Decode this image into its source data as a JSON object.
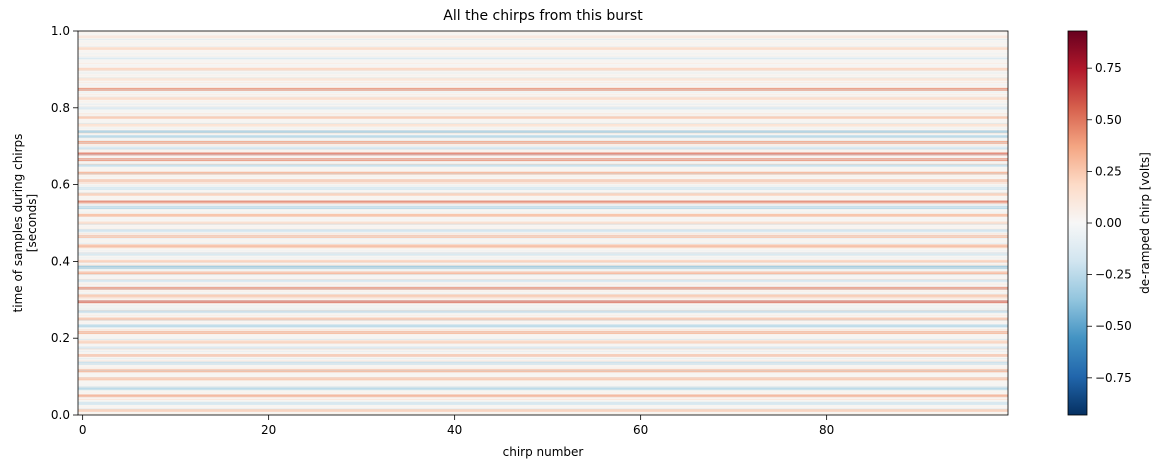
{
  "chart_data": {
    "type": "heatmap",
    "title": "All the chirps from this burst",
    "xlabel": "chirp number",
    "ylabel_lines": [
      "time of samples during chirps",
      "[seconds]"
    ],
    "xlim": [
      -0.5,
      99.5
    ],
    "ylim": [
      0.0,
      1.0
    ],
    "xticks": [
      0,
      20,
      40,
      60,
      80
    ],
    "yticks": [
      0.0,
      0.2,
      0.4,
      0.6,
      0.8,
      1.0
    ],
    "ytick_labels": [
      "0.0",
      "0.2",
      "0.4",
      "0.6",
      "0.8",
      "1.0"
    ],
    "n_chirps": 100,
    "colormap": "RdBu_r",
    "colormap_stops": [
      "#053061",
      "#2166ac",
      "#4393c3",
      "#92c5de",
      "#d1e5f0",
      "#f7f7f7",
      "#fddbc7",
      "#f4a582",
      "#d6604d",
      "#b2182b",
      "#67001f"
    ],
    "value_range": [
      -0.93,
      0.93
    ],
    "profile_features": [
      {
        "t": 0.985,
        "v": 0.1
      },
      {
        "t": 0.955,
        "v": 0.18
      },
      {
        "t": 0.93,
        "v": -0.08
      },
      {
        "t": 0.9,
        "v": 0.22
      },
      {
        "t": 0.875,
        "v": 0.15
      },
      {
        "t": 0.848,
        "v": 0.45
      },
      {
        "t": 0.825,
        "v": 0.2
      },
      {
        "t": 0.8,
        "v": -0.15
      },
      {
        "t": 0.775,
        "v": 0.28
      },
      {
        "t": 0.755,
        "v": 0.18
      },
      {
        "t": 0.738,
        "v": -0.35
      },
      {
        "t": 0.725,
        "v": -0.3
      },
      {
        "t": 0.71,
        "v": 0.4
      },
      {
        "t": 0.695,
        "v": -0.22
      },
      {
        "t": 0.68,
        "v": 0.52
      },
      {
        "t": 0.665,
        "v": 0.45
      },
      {
        "t": 0.65,
        "v": -0.25
      },
      {
        "t": 0.63,
        "v": 0.35
      },
      {
        "t": 0.61,
        "v": 0.3
      },
      {
        "t": 0.59,
        "v": -0.2
      },
      {
        "t": 0.575,
        "v": 0.25
      },
      {
        "t": 0.555,
        "v": 0.5
      },
      {
        "t": 0.54,
        "v": -0.3
      },
      {
        "t": 0.52,
        "v": 0.32
      },
      {
        "t": 0.5,
        "v": 0.2
      },
      {
        "t": 0.48,
        "v": -0.22
      },
      {
        "t": 0.465,
        "v": 0.3
      },
      {
        "t": 0.44,
        "v": 0.35
      },
      {
        "t": 0.42,
        "v": -0.18
      },
      {
        "t": 0.4,
        "v": 0.25
      },
      {
        "t": 0.385,
        "v": -0.4
      },
      {
        "t": 0.37,
        "v": 0.35
      },
      {
        "t": 0.35,
        "v": -0.2
      },
      {
        "t": 0.33,
        "v": 0.45
      },
      {
        "t": 0.31,
        "v": 0.3
      },
      {
        "t": 0.295,
        "v": 0.55
      },
      {
        "t": 0.27,
        "v": -0.25
      },
      {
        "t": 0.25,
        "v": 0.3
      },
      {
        "t": 0.232,
        "v": -0.3
      },
      {
        "t": 0.215,
        "v": 0.35
      },
      {
        "t": 0.19,
        "v": 0.25
      },
      {
        "t": 0.175,
        "v": -0.18
      },
      {
        "t": 0.155,
        "v": 0.3
      },
      {
        "t": 0.135,
        "v": -0.25
      },
      {
        "t": 0.115,
        "v": 0.35
      },
      {
        "t": 0.095,
        "v": 0.28
      },
      {
        "t": 0.07,
        "v": -0.3
      },
      {
        "t": 0.05,
        "v": 0.38
      },
      {
        "t": 0.03,
        "v": -0.2
      },
      {
        "t": 0.012,
        "v": 0.25
      }
    ],
    "colorbar": {
      "label": "de-ramped chirp [volts]",
      "ticks": [
        0.75,
        0.5,
        0.25,
        0.0,
        -0.25,
        -0.5,
        -0.75
      ],
      "tick_labels": [
        "0.75",
        "0.50",
        "0.25",
        "0.00",
        "−0.25",
        "−0.50",
        "−0.75"
      ]
    }
  }
}
